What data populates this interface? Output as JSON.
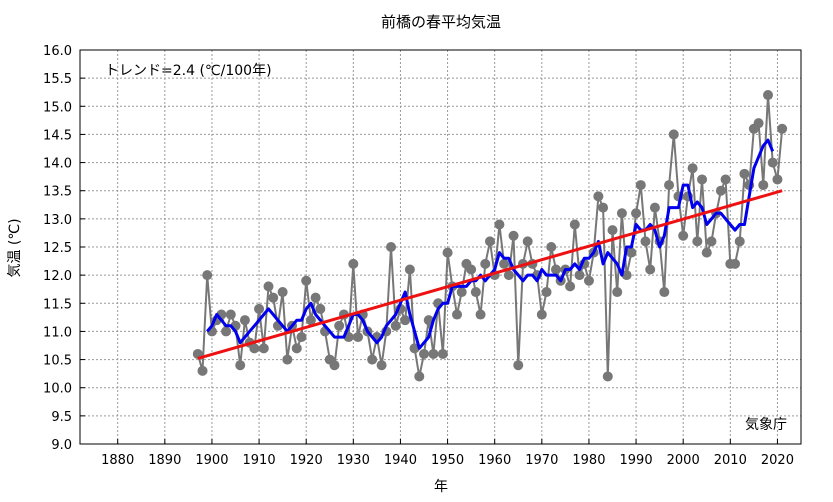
{
  "chart_data": {
    "type": "line",
    "title": "前橋の春平均気温",
    "xlabel": "年",
    "ylabel": "気温 (℃)",
    "trend_label": "トレンド=2.4 (℃/100年)",
    "source_label": "気象庁",
    "xlim": [
      1872,
      2025
    ],
    "ylim": [
      9.0,
      16.0
    ],
    "x_ticks": [
      1880,
      1890,
      1900,
      1910,
      1920,
      1930,
      1940,
      1950,
      1960,
      1970,
      1980,
      1990,
      2000,
      2010,
      2020
    ],
    "y_ticks": [
      9.0,
      9.5,
      10.0,
      10.5,
      11.0,
      11.5,
      12.0,
      12.5,
      13.0,
      13.5,
      14.0,
      14.5,
      15.0,
      15.5,
      16.0
    ],
    "grid": true,
    "colors": {
      "annual": "#777777",
      "moving_average": "#0000ee",
      "trend": "#ee1111"
    },
    "series": [
      {
        "role": "annual",
        "x": [
          1897,
          1898,
          1899,
          1900,
          1901,
          1902,
          1903,
          1904,
          1905,
          1906,
          1907,
          1908,
          1909,
          1910,
          1911,
          1912,
          1913,
          1914,
          1915,
          1916,
          1917,
          1918,
          1919,
          1920,
          1921,
          1922,
          1923,
          1924,
          1925,
          1926,
          1927,
          1928,
          1929,
          1930,
          1931,
          1932,
          1933,
          1934,
          1935,
          1936,
          1937,
          1938,
          1939,
          1940,
          1941,
          1942,
          1943,
          1944,
          1945,
          1946,
          1947,
          1948,
          1949,
          1950,
          1951,
          1952,
          1953,
          1954,
          1955,
          1956,
          1957,
          1958,
          1959,
          1960,
          1961,
          1962,
          1963,
          1964,
          1965,
          1966,
          1967,
          1968,
          1969,
          1970,
          1971,
          1972,
          1973,
          1974,
          1975,
          1976,
          1977,
          1978,
          1979,
          1980,
          1981,
          1982,
          1983,
          1984,
          1985,
          1986,
          1987,
          1988,
          1989,
          1990,
          1991,
          1992,
          1993,
          1994,
          1995,
          1996,
          1997,
          1998,
          1999,
          2000,
          2001,
          2002,
          2003,
          2004,
          2005,
          2006,
          2007,
          2008,
          2009,
          2010,
          2011,
          2012,
          2013,
          2014,
          2015,
          2016,
          2017,
          2018,
          2019,
          2020,
          2021
        ],
        "y": [
          10.6,
          10.3,
          12.0,
          11.0,
          11.2,
          11.3,
          11.0,
          11.3,
          11.1,
          10.4,
          11.2,
          10.8,
          10.7,
          11.4,
          10.7,
          11.8,
          11.6,
          11.1,
          11.7,
          10.5,
          11.1,
          10.7,
          10.9,
          11.9,
          11.2,
          11.6,
          11.4,
          11.0,
          10.5,
          10.4,
          11.1,
          11.3,
          10.9,
          12.2,
          10.9,
          11.3,
          11.0,
          10.5,
          10.9,
          10.4,
          11.0,
          12.5,
          11.1,
          11.4,
          11.2,
          12.1,
          10.7,
          10.2,
          10.6,
          11.2,
          10.6,
          11.5,
          10.6,
          12.4,
          11.8,
          11.3,
          11.7,
          12.2,
          12.1,
          11.7,
          11.3,
          12.2,
          12.6,
          12.0,
          12.9,
          12.2,
          12.0,
          12.7,
          10.4,
          12.2,
          12.6,
          12.2,
          12.0,
          11.3,
          11.7,
          12.5,
          12.1,
          11.9,
          12.1,
          11.8,
          12.9,
          12.0,
          12.2,
          11.9,
          12.4,
          13.4,
          13.2,
          10.2,
          12.8,
          11.7,
          13.1,
          12.0,
          12.4,
          13.1,
          13.6,
          12.6,
          12.1,
          13.2,
          12.6,
          11.7,
          13.6,
          14.5,
          13.4,
          12.7,
          13.4,
          13.9,
          12.6,
          13.7,
          12.4,
          12.6,
          13.1,
          13.5,
          13.7,
          12.2,
          12.2,
          12.6,
          13.8,
          13.6,
          14.6,
          14.7,
          13.6,
          15.2,
          14.0,
          13.7,
          14.6
        ]
      },
      {
        "role": "moving_average",
        "x": [
          1899,
          1900,
          1901,
          1902,
          1903,
          1904,
          1905,
          1906,
          1907,
          1908,
          1909,
          1910,
          1911,
          1912,
          1913,
          1914,
          1915,
          1916,
          1917,
          1918,
          1919,
          1920,
          1921,
          1922,
          1923,
          1924,
          1925,
          1926,
          1927,
          1928,
          1929,
          1930,
          1931,
          1932,
          1933,
          1934,
          1935,
          1936,
          1937,
          1938,
          1939,
          1940,
          1941,
          1942,
          1943,
          1944,
          1945,
          1946,
          1947,
          1948,
          1949,
          1950,
          1951,
          1952,
          1953,
          1954,
          1955,
          1956,
          1957,
          1958,
          1959,
          1960,
          1961,
          1962,
          1963,
          1964,
          1965,
          1966,
          1967,
          1968,
          1969,
          1970,
          1971,
          1972,
          1973,
          1974,
          1975,
          1976,
          1977,
          1978,
          1979,
          1980,
          1981,
          1982,
          1983,
          1984,
          1985,
          1986,
          1987,
          1988,
          1989,
          1990,
          1991,
          1992,
          1993,
          1994,
          1995,
          1996,
          1997,
          1998,
          1999,
          2000,
          2001,
          2002,
          2003,
          2004,
          2005,
          2006,
          2007,
          2008,
          2009,
          2010,
          2011,
          2012,
          2013,
          2014,
          2015,
          2016,
          2017,
          2018,
          2019
        ],
        "y": [
          11.0,
          11.1,
          11.3,
          11.2,
          11.1,
          11.1,
          11.0,
          10.8,
          10.9,
          11.0,
          11.1,
          11.2,
          11.3,
          11.4,
          11.3,
          11.2,
          11.1,
          11.0,
          11.1,
          11.2,
          11.2,
          11.4,
          11.5,
          11.3,
          11.2,
          11.1,
          11.0,
          10.9,
          10.9,
          10.9,
          11.1,
          11.3,
          11.3,
          11.2,
          11.0,
          10.9,
          10.8,
          10.9,
          11.1,
          11.2,
          11.3,
          11.5,
          11.7,
          11.3,
          11.0,
          10.7,
          10.8,
          10.9,
          11.2,
          11.4,
          11.5,
          11.5,
          11.8,
          11.8,
          11.8,
          11.8,
          11.9,
          11.9,
          12.0,
          11.9,
          12.0,
          12.1,
          12.4,
          12.3,
          12.3,
          12.1,
          12.0,
          11.9,
          12.0,
          12.0,
          11.9,
          12.1,
          12.0,
          12.0,
          12.0,
          11.9,
          12.1,
          12.1,
          12.2,
          12.1,
          12.3,
          12.3,
          12.4,
          12.6,
          12.2,
          12.4,
          12.3,
          12.2,
          12.0,
          12.5,
          12.5,
          12.9,
          12.8,
          12.8,
          12.9,
          12.8,
          12.5,
          12.7,
          13.2,
          13.2,
          13.2,
          13.6,
          13.6,
          13.2,
          13.3,
          13.2,
          12.9,
          13.0,
          13.1,
          13.1,
          13.0,
          12.9,
          12.8,
          12.9,
          12.9,
          13.4,
          13.9,
          14.1,
          14.3,
          14.4,
          14.2
        ]
      },
      {
        "role": "trend",
        "x": [
          1897,
          2021
        ],
        "y": [
          10.52,
          13.5
        ]
      }
    ]
  }
}
